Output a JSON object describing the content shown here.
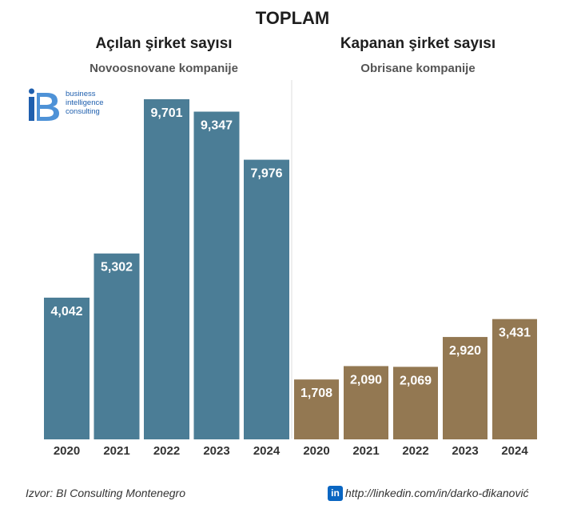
{
  "header": {
    "title": "TOPLAM"
  },
  "logo": {
    "icon": "bi-logo-icon",
    "line1": "business",
    "line2": "intelligence",
    "line3": "consulting",
    "color": "#1f5fae"
  },
  "footer": {
    "source": "Izvor: BI Consulting Montenegro",
    "linkedin": "http://linkedin.com/in/darko-đikanović",
    "linkedin_icon": "linkedin-icon",
    "linkedin_badge": "in"
  },
  "chart_data": [
    {
      "type": "bar",
      "title": "Açılan şirket sayısı",
      "subtitle": "Novoosnovane kompanije",
      "categories": [
        "2020",
        "2021",
        "2022",
        "2023",
        "2024"
      ],
      "values": [
        4042,
        5302,
        9701,
        9347,
        7976
      ],
      "labels": [
        "4,042",
        "5,302",
        "9,701",
        "9,347",
        "7,976"
      ],
      "ylim": [
        0,
        9701
      ],
      "color": "#4b7d96",
      "grid": false,
      "legend": "none"
    },
    {
      "type": "bar",
      "title": "Kapanan şirket sayısı",
      "subtitle": "Obrisane kompanije",
      "categories": [
        "2020",
        "2021",
        "2022",
        "2023",
        "2024"
      ],
      "values": [
        1708,
        2090,
        2069,
        2920,
        3431
      ],
      "labels": [
        "1,708",
        "2,090",
        "2,069",
        "2,920",
        "3,431"
      ],
      "ylim": [
        0,
        9701
      ],
      "color": "#937852",
      "grid": false,
      "legend": "none"
    }
  ]
}
